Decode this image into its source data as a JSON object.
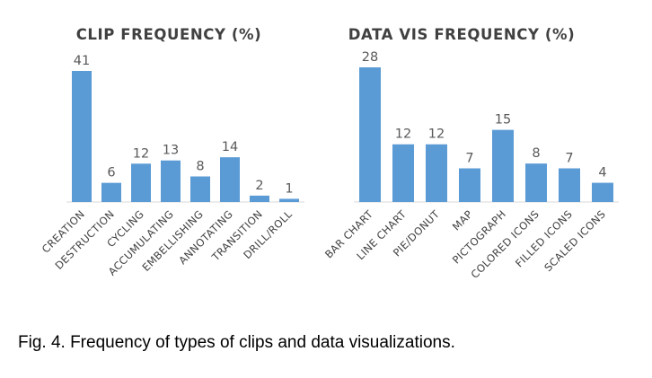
{
  "chart_data": [
    {
      "type": "bar",
      "title": "CLIP FREQUENCY (%)",
      "categories": [
        "CREATION",
        "DESTRUCTION",
        "CYCLING",
        "ACCUMULATING",
        "EMBELLISHING",
        "ANNOTATING",
        "TRANSITION",
        "DRILL/ROLL"
      ],
      "values": [
        41,
        6,
        12,
        13,
        8,
        14,
        2,
        1
      ],
      "ylim": [
        0,
        41
      ],
      "grid": false,
      "bar_color": "#5b9bd5"
    },
    {
      "type": "bar",
      "title": "DATA VIS FREQUENCY (%)",
      "categories": [
        "BAR CHART",
        "LINE CHART",
        "PIE/DONUT",
        "MAP",
        "PICTOGRAPH",
        "COLORED ICONS",
        "FILLED ICONS",
        "SCALED ICONS"
      ],
      "values": [
        28,
        12,
        12,
        7,
        15,
        8,
        7,
        4
      ],
      "ylim": [
        0,
        28
      ],
      "grid": false,
      "bar_color": "#5b9bd5"
    }
  ],
  "caption": "Fig. 4. Frequency of types of clips and data visualizations."
}
